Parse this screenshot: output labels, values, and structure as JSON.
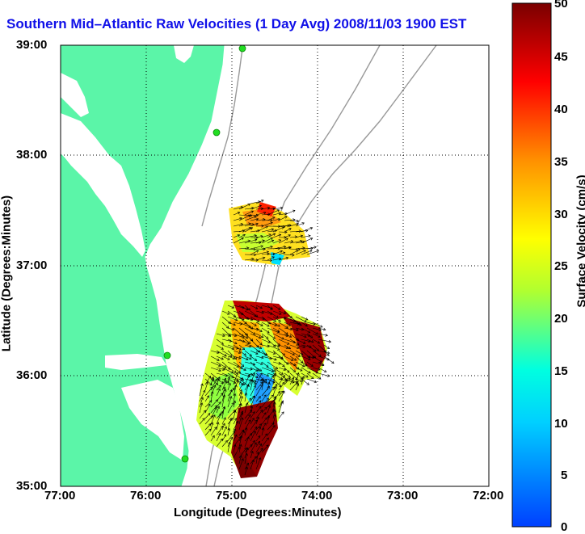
{
  "title": "Southern Mid–Atlantic Raw Velocities (1 Day Avg) 2008/11/03 1900 EST",
  "x_axis": {
    "label": "Longitude (Degrees:Minutes)",
    "ticks": [
      "77:00",
      "76:00",
      "75:00",
      "74:00",
      "73:00",
      "72:00"
    ]
  },
  "y_axis": {
    "label": "Latitude (Degrees:Minutes)",
    "ticks": [
      "39:00",
      "38:00",
      "37:00",
      "36:00",
      "35:00"
    ]
  },
  "colorbar": {
    "label": "Surface Velocity (cm/s)",
    "ticks": [
      "50",
      "45",
      "40",
      "35",
      "30",
      "25",
      "20",
      "15",
      "10",
      "5",
      "0"
    ],
    "range": [
      0,
      50
    ]
  },
  "colors": {
    "land": "#5bf5a8",
    "title": "#1010e8",
    "station": "#22dd22",
    "contour": "#999999"
  },
  "chart_data": {
    "type": "heatmap",
    "x_range_deg_west": [
      77,
      72
    ],
    "y_range_deg_north": [
      35,
      39
    ],
    "grid": true,
    "velocity_units": "cm/s",
    "stations": [
      {
        "lon": 74.92,
        "lat": 38.98
      },
      {
        "lon": 75.08,
        "lat": 38.22
      },
      {
        "lon": 75.68,
        "lat": 36.18
      },
      {
        "lon": 75.48,
        "lat": 35.25
      }
    ]
  }
}
